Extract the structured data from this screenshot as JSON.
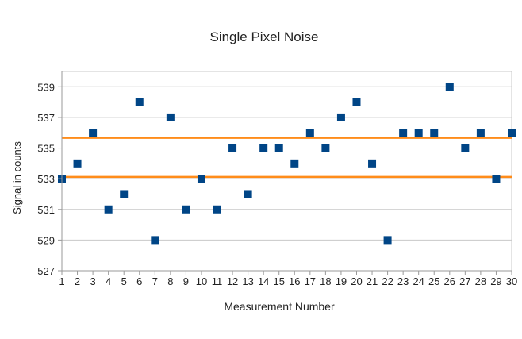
{
  "chart_data": {
    "type": "scatter",
    "title": "Single Pixel Noise",
    "xlabel": "Measurement Number",
    "ylabel": "Signal in counts",
    "x": [
      1,
      2,
      3,
      4,
      5,
      6,
      7,
      8,
      9,
      10,
      11,
      12,
      13,
      14,
      15,
      16,
      17,
      18,
      19,
      20,
      21,
      22,
      23,
      24,
      25,
      26,
      27,
      28,
      29,
      30
    ],
    "y": [
      533,
      534,
      536,
      531,
      532,
      538,
      529,
      537,
      531,
      533,
      531,
      535,
      532,
      535,
      535,
      534,
      536,
      535,
      537,
      538,
      534,
      529,
      536,
      536,
      536,
      539,
      535,
      536,
      533,
      536
    ],
    "xticks": [
      "1",
      "2",
      "3",
      "4",
      "5",
      "6",
      "7",
      "8",
      "9",
      "10",
      "11",
      "12",
      "13",
      "14",
      "15",
      "16",
      "17",
      "18",
      "19",
      "20",
      "21",
      "22",
      "23",
      "24",
      "25",
      "26",
      "27",
      "28",
      "29",
      "30"
    ],
    "yticks": [
      527,
      529,
      531,
      533,
      535,
      537,
      539
    ],
    "xlim": [
      1,
      30
    ],
    "ylim": [
      527,
      540
    ],
    "grid": "horizontal",
    "reference_lines": [
      535.67,
      533.12
    ],
    "marker_color": "#004586",
    "line_color": "#ff8c1a",
    "grid_color": "#c8c8c8"
  }
}
